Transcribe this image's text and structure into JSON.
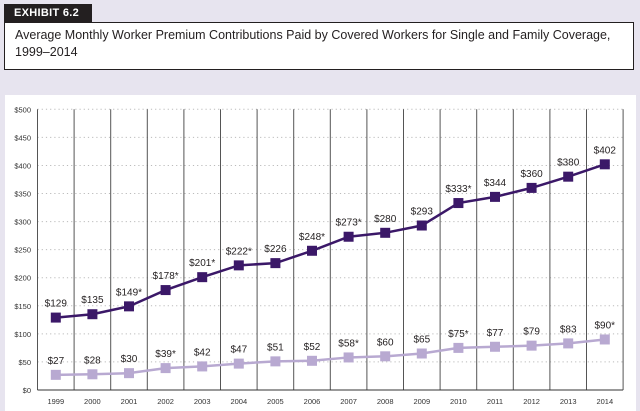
{
  "exhibit_label": "EXHIBIT 6.2",
  "chart_data": {
    "type": "line",
    "title": "Average Monthly Worker Premium Contributions Paid by Covered Workers for Single and Family Coverage, 1999–2014",
    "categories": [
      "1999",
      "2000",
      "2001",
      "2002",
      "2003",
      "2004",
      "2005",
      "2006",
      "2007",
      "2008",
      "2009",
      "2010",
      "2011",
      "2012",
      "2013",
      "2014"
    ],
    "ylim": [
      0,
      500
    ],
    "yticks": [
      "$0",
      "$50",
      "$100",
      "$150",
      "$200",
      "$250",
      "$300",
      "$350",
      "$400",
      "$450",
      "$500"
    ],
    "grid": "horizontal dotted, vertical solid",
    "series": [
      {
        "values": [
          129,
          135,
          149,
          178,
          201,
          222,
          226,
          248,
          273,
          280,
          293,
          333,
          344,
          360,
          380,
          402
        ],
        "labels": [
          "$129",
          "$135",
          "$149*",
          "$178*",
          "$201*",
          "$222*",
          "$226",
          "$248*",
          "$273*",
          "$280",
          "$293",
          "$333*",
          "$344",
          "$360",
          "$380",
          "$402"
        ],
        "color": "#3b1868"
      },
      {
        "values": [
          27,
          28,
          30,
          39,
          42,
          47,
          51,
          52,
          58,
          60,
          65,
          75,
          77,
          79,
          83,
          90
        ],
        "labels": [
          "$27",
          "$28",
          "$30",
          "$39*",
          "$42",
          "$47",
          "$51",
          "$52",
          "$58*",
          "$60",
          "$65",
          "$75*",
          "$77",
          "$79",
          "$83",
          "$90*"
        ],
        "color": "#b8a9d1"
      }
    ]
  }
}
